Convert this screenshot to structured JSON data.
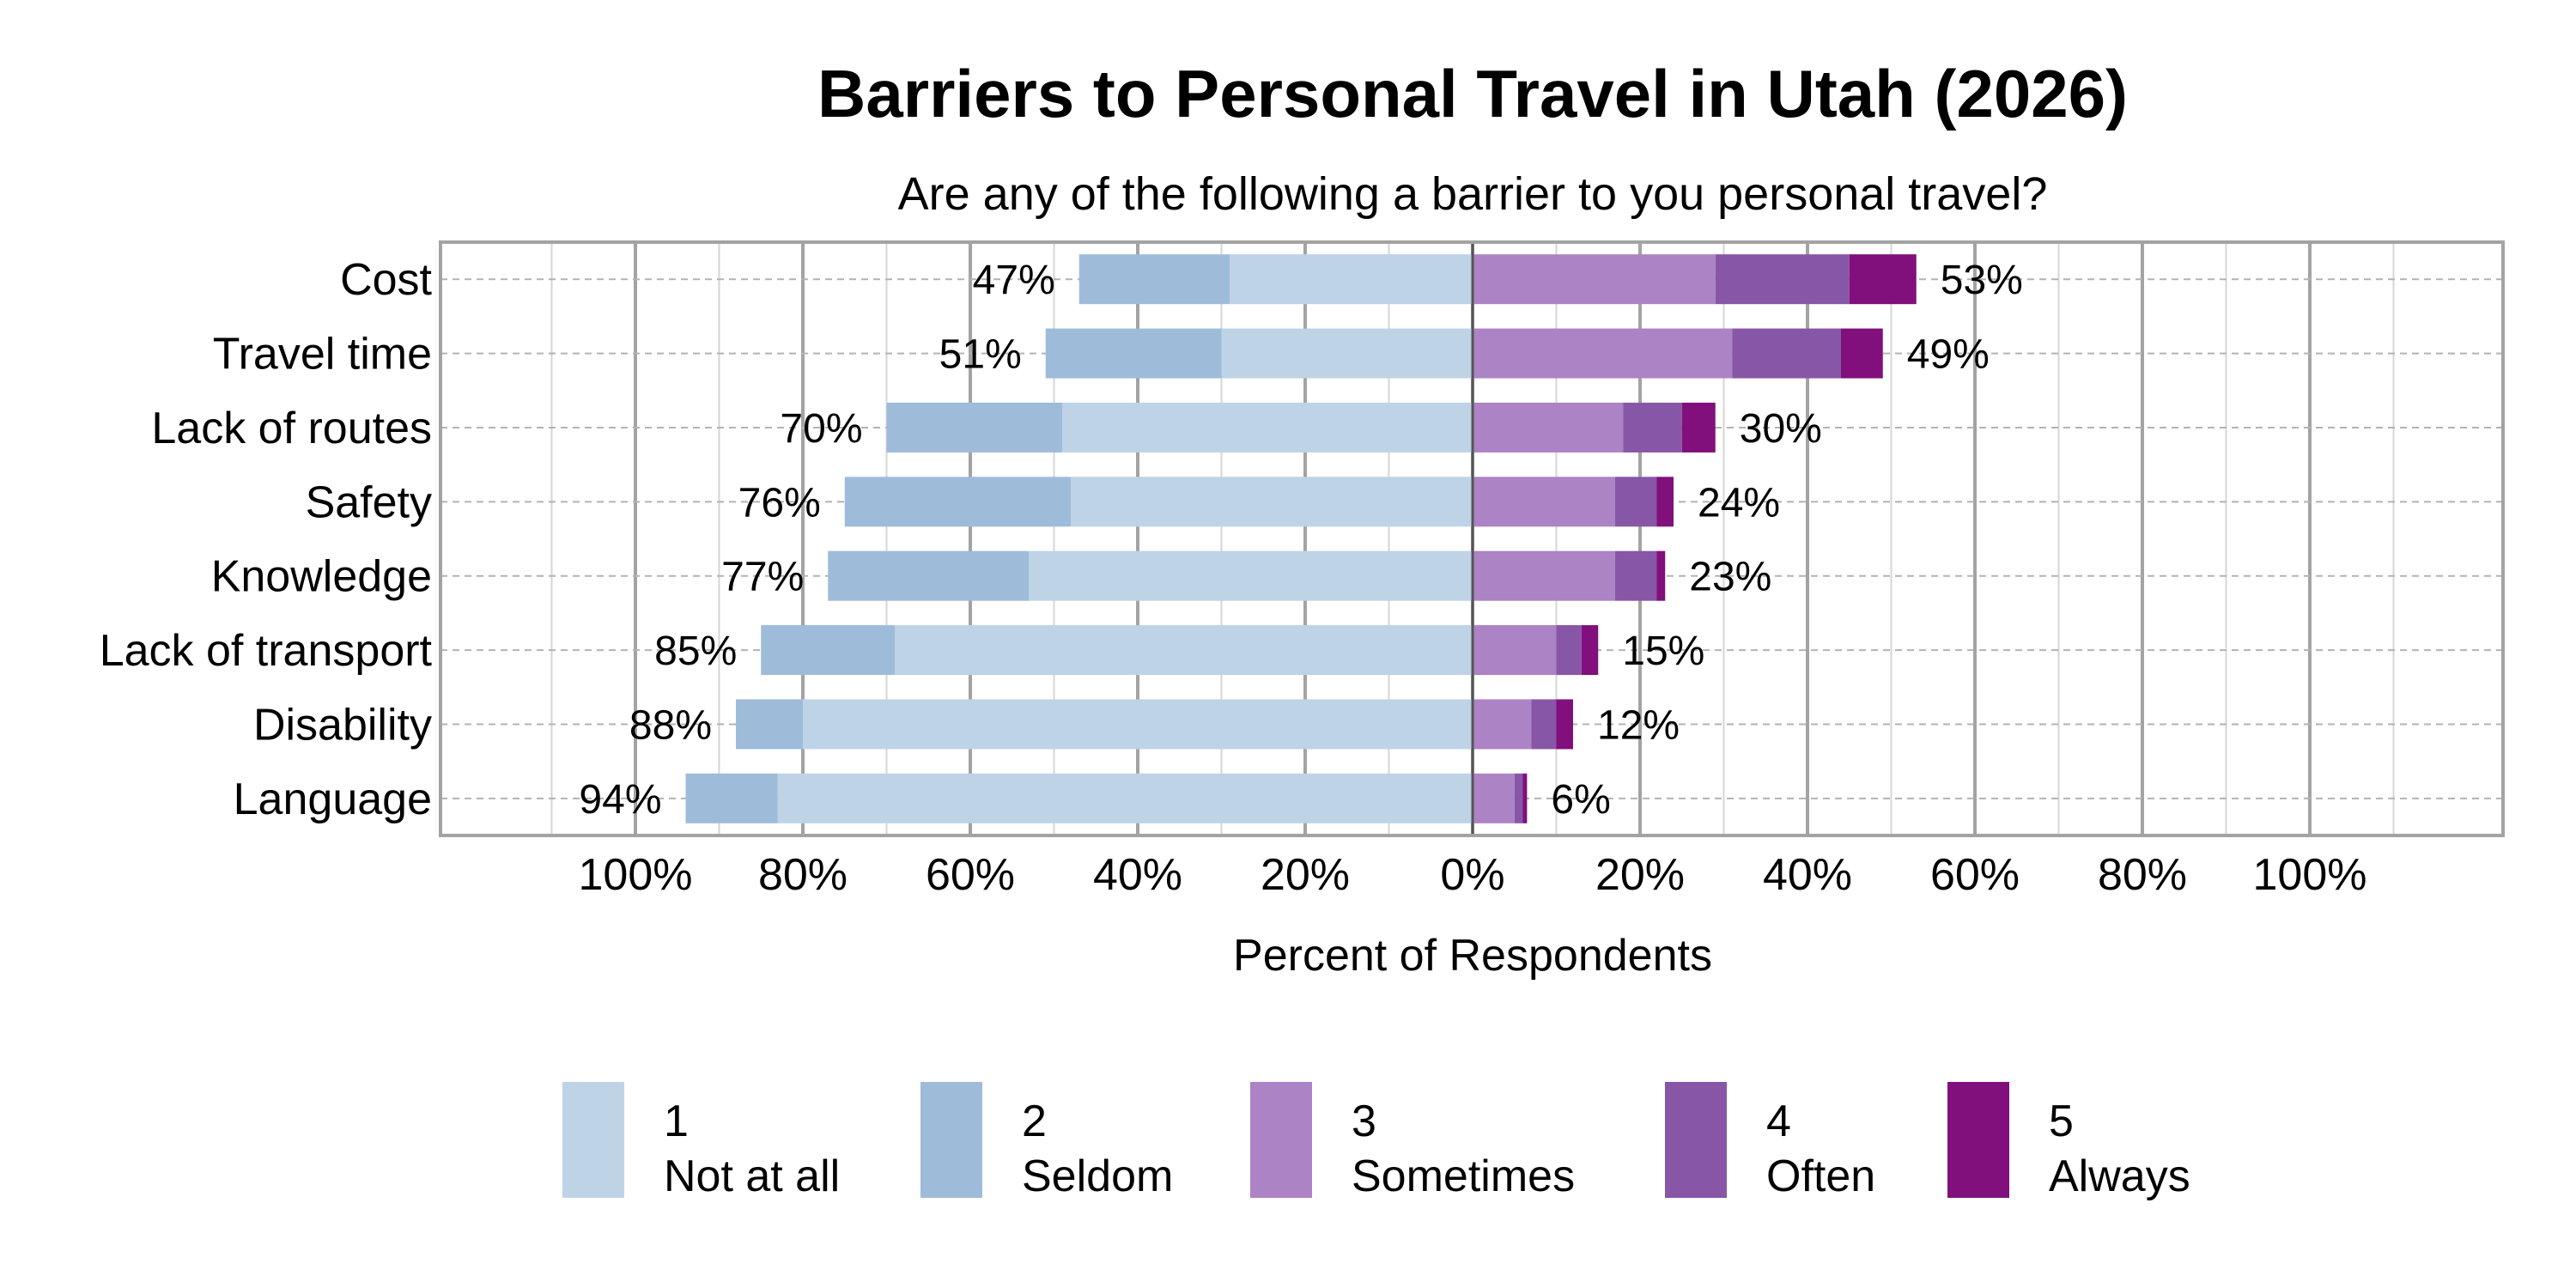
{
  "chart_data": {
    "type": "bar",
    "orientation": "horizontal",
    "stacking": "diverging",
    "title": "Barriers to Personal Travel in Utah (2026)",
    "subtitle": "Are any of the following a barrier to you personal travel?",
    "xlabel": "Percent of Respondents",
    "ylabel": "",
    "xlim": [
      -100,
      100
    ],
    "x_ticks": [
      -100,
      -80,
      -60,
      -40,
      -20,
      0,
      20,
      40,
      60,
      80,
      100
    ],
    "x_tick_labels": [
      "100%",
      "80%",
      "60%",
      "40%",
      "20%",
      "0%",
      "20%",
      "40%",
      "60%",
      "80%",
      "100%"
    ],
    "grid": true,
    "legend_position": "bottom",
    "categories": [
      "Cost",
      "Travel time",
      "Lack of routes",
      "Safety",
      "Knowledge",
      "Lack of transport",
      "Disability",
      "Language"
    ],
    "series": [
      {
        "name": "1\nNot at all",
        "label": "1",
        "sublabel": "Not at all",
        "color": "#bfd3e6",
        "side": "left",
        "values": [
          29,
          30,
          49,
          48,
          53,
          69,
          80,
          83
        ]
      },
      {
        "name": "2\nSeldom",
        "label": "2",
        "sublabel": "Seldom",
        "color": "#9ebcda",
        "side": "left",
        "values": [
          18,
          21,
          21,
          27,
          24,
          16,
          8,
          11
        ]
      },
      {
        "name": "3\nSometimes",
        "label": "3",
        "sublabel": "Sometimes",
        "color": "#ac83c4",
        "side": "right",
        "values": [
          29,
          31,
          18,
          17,
          17,
          10,
          7,
          5
        ]
      },
      {
        "name": "4\nOften",
        "label": "4",
        "sublabel": "Often",
        "color": "#8856a7",
        "side": "right",
        "values": [
          16,
          13,
          7,
          5,
          5,
          3,
          3,
          1
        ]
      },
      {
        "name": "5\nAlways",
        "label": "5",
        "sublabel": "Always",
        "color": "#810f7c",
        "side": "right",
        "values": [
          8,
          5,
          4,
          2,
          1,
          2,
          2,
          0.5
        ]
      }
    ],
    "left_totals": [
      "47%",
      "51%",
      "70%",
      "76%",
      "77%",
      "85%",
      "88%",
      "94%"
    ],
    "right_totals": [
      "53%",
      "49%",
      "30%",
      "24%",
      "23%",
      "15%",
      "12%",
      "6%"
    ]
  }
}
